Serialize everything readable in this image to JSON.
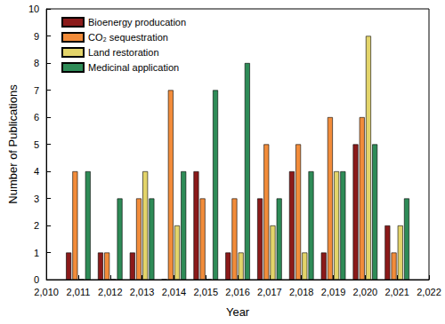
{
  "chart_data": {
    "type": "bar",
    "x": [
      2011,
      2012,
      2013,
      2014,
      2015,
      2016,
      2017,
      2018,
      2019,
      2020,
      2021
    ],
    "series": [
      {
        "name": "Bioenergy producation",
        "color": "#8b1a1a",
        "values": [
          1,
          1,
          1,
          0,
          4,
          1,
          3,
          4,
          1,
          5,
          2
        ]
      },
      {
        "name": "CO₂ sequestration",
        "color": "#f28c3a",
        "values": [
          4,
          1,
          3,
          7,
          3,
          3,
          5,
          5,
          6,
          6,
          1
        ]
      },
      {
        "name": "Land restoration",
        "color": "#e3d46a",
        "values": [
          0,
          0,
          4,
          2,
          0,
          1,
          2,
          1,
          4,
          9,
          2
        ]
      },
      {
        "name": "Medicinal application",
        "color": "#2e8b57",
        "values": [
          4,
          3,
          3,
          4,
          7,
          8,
          3,
          4,
          4,
          5,
          3
        ]
      }
    ],
    "x_label": "Year",
    "y_label": "Number of Publications",
    "xlim": [
      2010,
      2022
    ],
    "xticks": [
      2010,
      2011,
      2012,
      2013,
      2014,
      2015,
      2016,
      2017,
      2018,
      2019,
      2020,
      2021,
      2022
    ],
    "ylim": [
      0,
      10
    ],
    "yticks": [
      0,
      1,
      2,
      3,
      4,
      5,
      6,
      7,
      8,
      9,
      10
    ],
    "legend": "upper left",
    "grid": false
  }
}
